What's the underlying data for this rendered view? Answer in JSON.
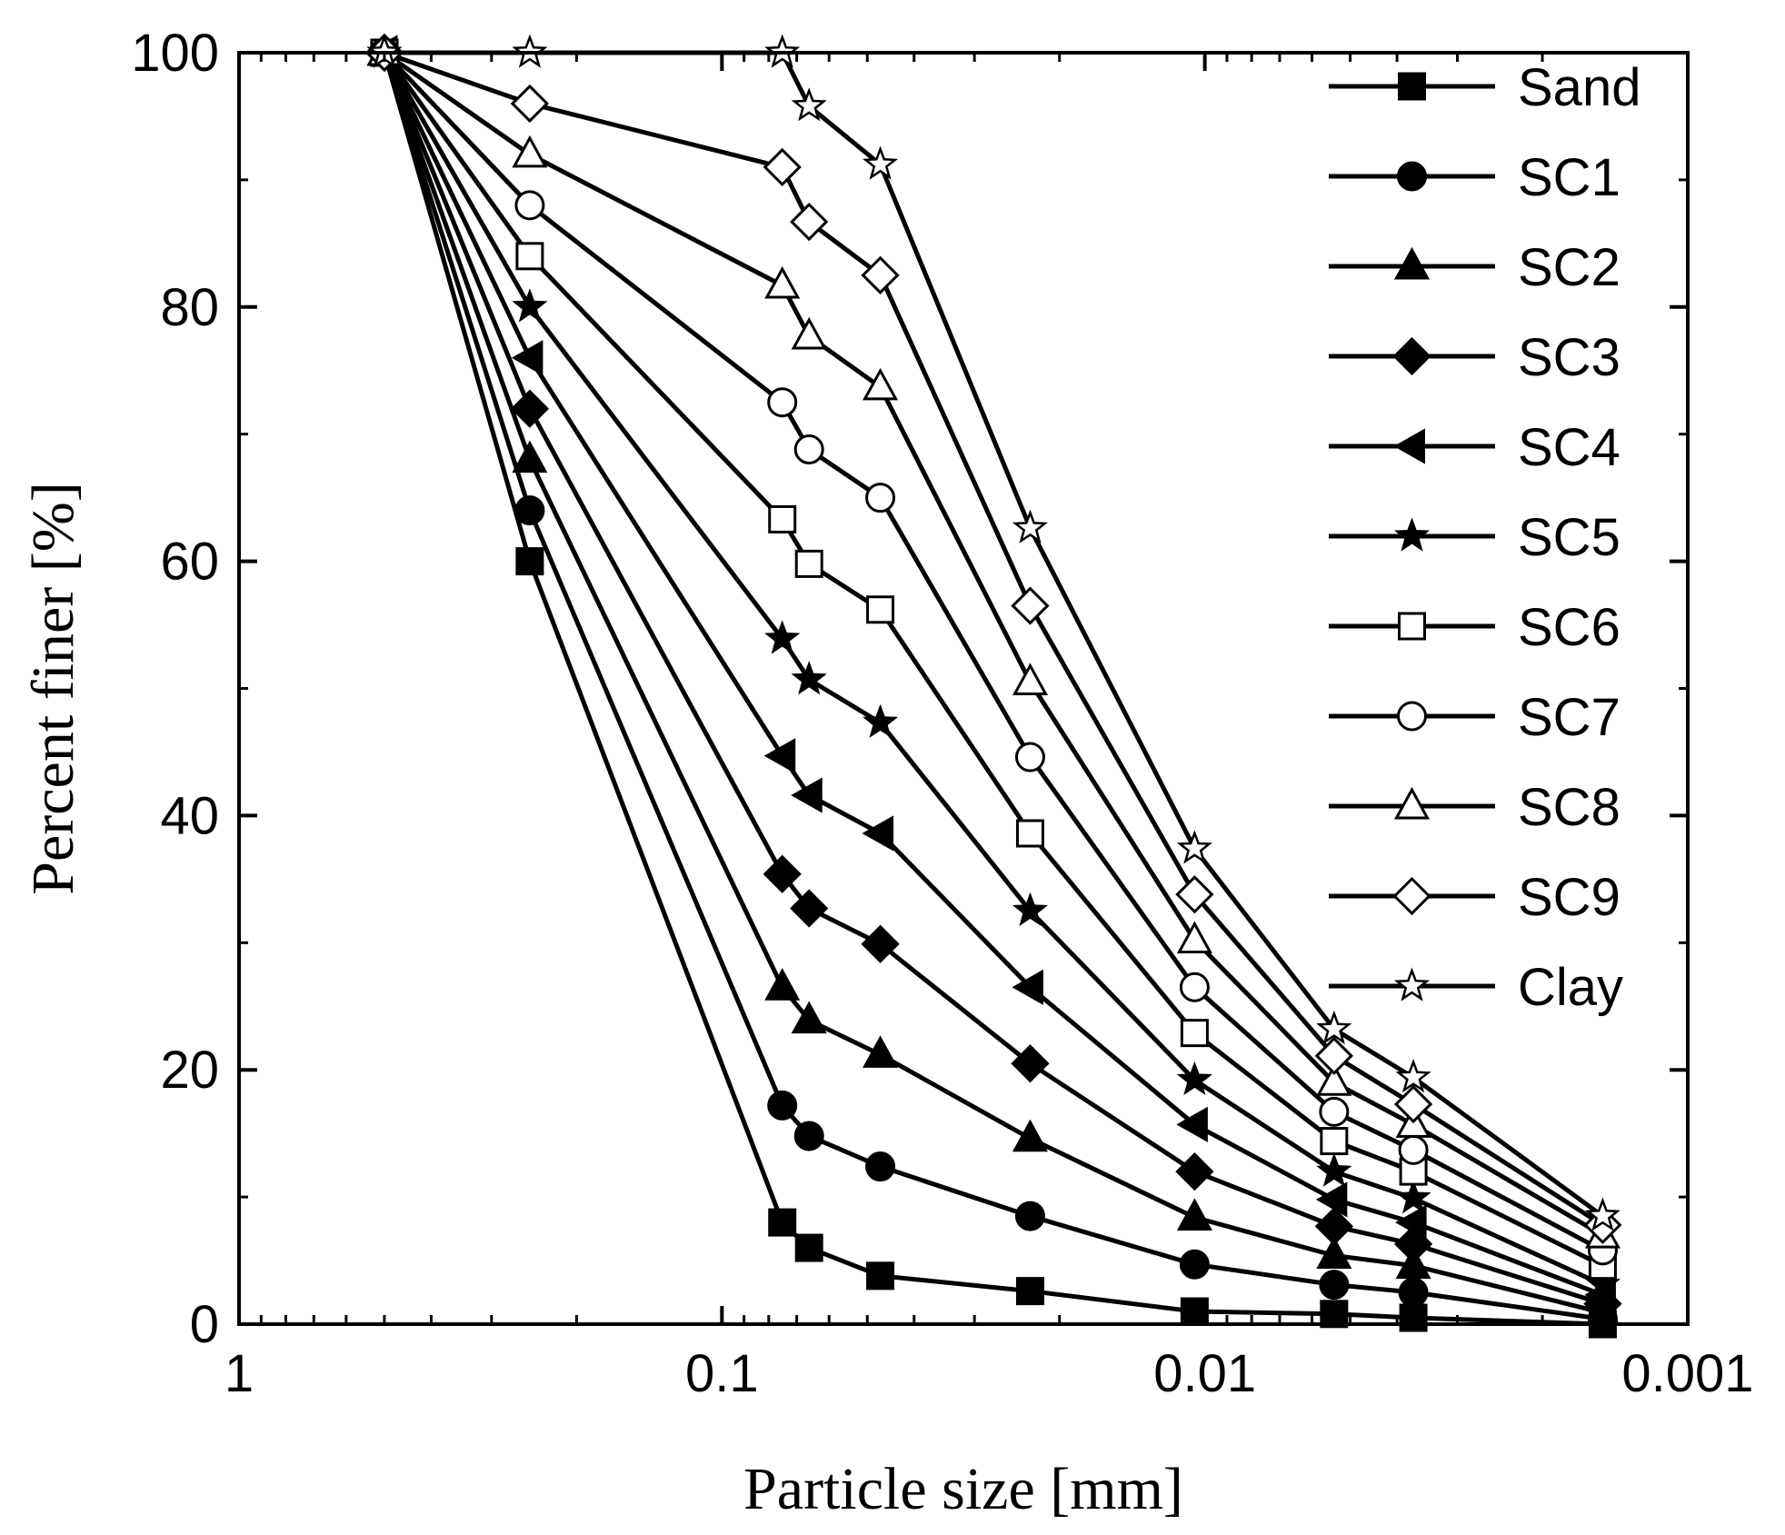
{
  "chart_data": {
    "type": "line",
    "xscale": "log",
    "x_reversed": true,
    "xlim": [
      1,
      0.001
    ],
    "ylim": [
      0,
      100
    ],
    "xlabel": "Particle size [mm]",
    "ylabel": "Percent finer [%]",
    "x_ticks": [
      {
        "value": 1,
        "label": "1"
      },
      {
        "value": 0.1,
        "label": "0.1"
      },
      {
        "value": 0.01,
        "label": "0.01"
      },
      {
        "value": 0.001,
        "label": "0.001"
      }
    ],
    "y_ticks": [
      {
        "value": 0,
        "label": "0"
      },
      {
        "value": 20,
        "label": "20"
      },
      {
        "value": 40,
        "label": "40"
      },
      {
        "value": 60,
        "label": "60"
      },
      {
        "value": 80,
        "label": "80"
      },
      {
        "value": 100,
        "label": "100"
      }
    ],
    "grid": false,
    "legend_position": "top-right",
    "color": "#000000",
    "x": [
      0.5,
      0.25,
      0.075,
      0.066,
      0.047,
      0.023,
      0.0105,
      0.0054,
      0.0037,
      0.0015
    ],
    "series": [
      {
        "name": "Sand",
        "marker": "square-filled",
        "values": [
          100,
          60,
          8,
          6,
          3.8,
          2.6,
          1,
          0.8,
          0.5,
          0
        ]
      },
      {
        "name": "SC1",
        "marker": "circle-filled",
        "values": [
          100,
          64,
          17.2,
          14.8,
          12.4,
          8.5,
          4.7,
          3.1,
          2.5,
          0.4
        ]
      },
      {
        "name": "SC2",
        "marker": "triangle-filled",
        "values": [
          100,
          68,
          26.5,
          23.9,
          21.2,
          14.6,
          8.4,
          5.4,
          4.6,
          0.9
        ]
      },
      {
        "name": "SC3",
        "marker": "diamond-filled",
        "values": [
          100,
          72,
          35.4,
          32.7,
          29.9,
          20.5,
          12,
          7.7,
          6.3,
          1.6
        ]
      },
      {
        "name": "SC4",
        "marker": "left-triangle-filled",
        "values": [
          100,
          76,
          44.7,
          41.6,
          38.6,
          26.5,
          15.7,
          9.8,
          8,
          2.3
        ]
      },
      {
        "name": "SC5",
        "marker": "star-filled",
        "values": [
          100,
          80,
          53.9,
          50.7,
          47.3,
          32.5,
          19.2,
          12,
          9.9,
          3.1
        ]
      },
      {
        "name": "SC6",
        "marker": "square-open",
        "values": [
          100,
          84,
          63.3,
          59.8,
          56.2,
          38.6,
          22.9,
          14.4,
          12,
          4.6
        ]
      },
      {
        "name": "SC7",
        "marker": "circle-open",
        "values": [
          100,
          88,
          72.5,
          68.8,
          65,
          44.6,
          26.5,
          16.7,
          13.7,
          5.8
        ]
      },
      {
        "name": "SC8",
        "marker": "triangle-open",
        "values": [
          100,
          92,
          81.7,
          77.7,
          73.7,
          50.5,
          30.2,
          19,
          15.7,
          7
        ]
      },
      {
        "name": "SC9",
        "marker": "diamond-open",
        "values": [
          100,
          96,
          91,
          86.7,
          82.5,
          56.5,
          33.8,
          21.1,
          17.3,
          7.8
        ]
      },
      {
        "name": "Clay",
        "marker": "star-open",
        "x": [
          0.5,
          0.25,
          0.075,
          0.066,
          0.047,
          0.023,
          0.0105,
          0.0054,
          0.0037,
          0.0015
        ],
        "values": [
          100,
          100,
          100,
          95.8,
          91.2,
          62.6,
          37.4,
          23.2,
          19.4,
          8.5
        ]
      }
    ]
  }
}
